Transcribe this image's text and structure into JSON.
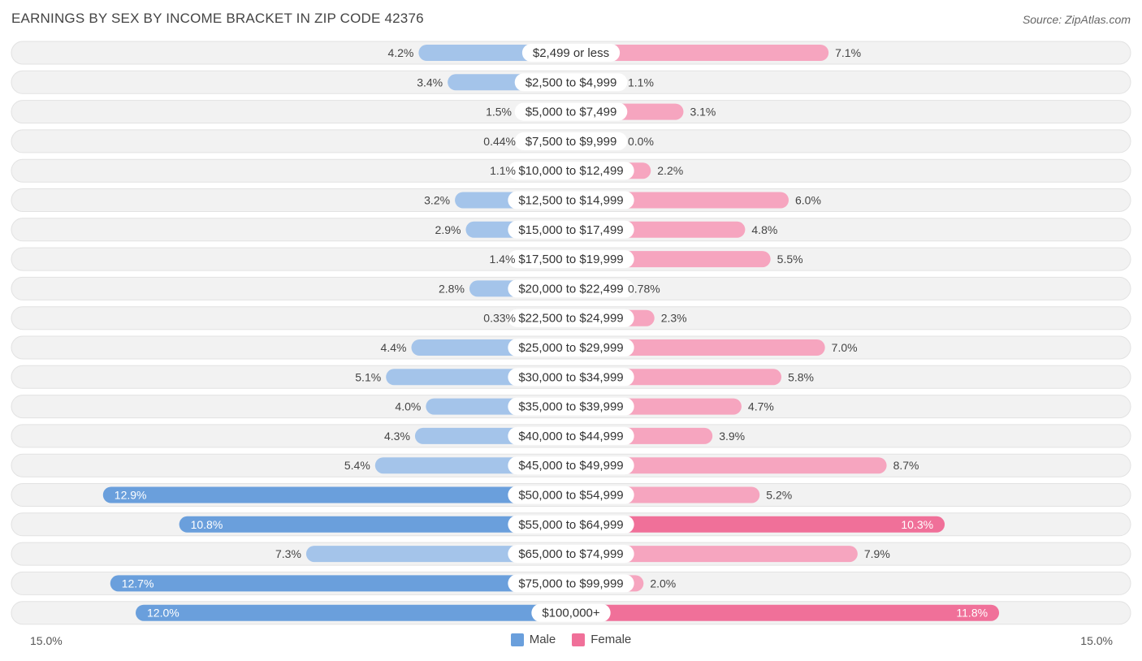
{
  "chart_data": {
    "type": "bar",
    "orientation": "horizontal-diverging",
    "title": "EARNINGS BY SEX BY INCOME BRACKET IN ZIP CODE 42376",
    "source": "Source: ZipAtlas.com",
    "categories": [
      "$2,499 or less",
      "$2,500 to $4,999",
      "$5,000 to $7,499",
      "$7,500 to $9,999",
      "$10,000 to $12,499",
      "$12,500 to $14,999",
      "$15,000 to $17,499",
      "$17,500 to $19,999",
      "$20,000 to $22,499",
      "$22,500 to $24,999",
      "$25,000 to $29,999",
      "$30,000 to $34,999",
      "$35,000 to $39,999",
      "$40,000 to $44,999",
      "$45,000 to $49,999",
      "$50,000 to $54,999",
      "$55,000 to $64,999",
      "$65,000 to $74,999",
      "$75,000 to $99,999",
      "$100,000+"
    ],
    "series": [
      {
        "name": "Male",
        "color": "#6a9fdc",
        "color_light": "#a4c4ea",
        "values": [
          4.2,
          3.4,
          1.5,
          0.44,
          1.1,
          3.2,
          2.9,
          1.4,
          2.8,
          0.33,
          4.4,
          5.1,
          4.0,
          4.3,
          5.4,
          12.9,
          10.8,
          7.3,
          12.7,
          12.0
        ],
        "labels": [
          "4.2%",
          "3.4%",
          "1.5%",
          "0.44%",
          "1.1%",
          "3.2%",
          "2.9%",
          "1.4%",
          "2.8%",
          "0.33%",
          "4.4%",
          "5.1%",
          "4.0%",
          "4.3%",
          "5.4%",
          "12.9%",
          "10.8%",
          "7.3%",
          "12.7%",
          "12.0%"
        ]
      },
      {
        "name": "Female",
        "color": "#f07099",
        "color_light": "#f6a5bf",
        "values": [
          7.1,
          1.1,
          3.1,
          0.0,
          2.2,
          6.0,
          4.8,
          5.5,
          0.78,
          2.3,
          7.0,
          5.8,
          4.7,
          3.9,
          8.7,
          5.2,
          10.3,
          7.9,
          2.0,
          11.8
        ],
        "labels": [
          "7.1%",
          "1.1%",
          "3.1%",
          "0.0%",
          "2.2%",
          "6.0%",
          "4.8%",
          "5.5%",
          "0.78%",
          "2.3%",
          "7.0%",
          "5.8%",
          "4.7%",
          "3.9%",
          "8.7%",
          "5.2%",
          "10.3%",
          "7.9%",
          "2.0%",
          "11.8%"
        ]
      }
    ],
    "xlim": [
      -15.0,
      15.0
    ],
    "axis_min_label": "15.0%",
    "axis_max_label": "15.0%",
    "legend": [
      "Male",
      "Female"
    ]
  }
}
